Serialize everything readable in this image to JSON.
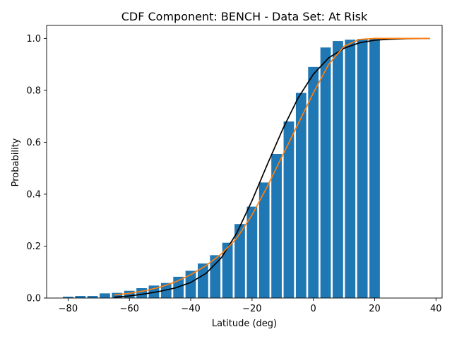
{
  "chart_data": {
    "type": "bar",
    "title": "CDF Component: BENCH - Data Set: At Risk",
    "xlabel": "Latitude (deg)",
    "ylabel": "Probability",
    "xlim": [
      -87,
      42
    ],
    "ylim": [
      0,
      1.05
    ],
    "xticks": [
      -80,
      -60,
      -40,
      -20,
      0,
      20,
      40
    ],
    "yticks": [
      0.0,
      0.2,
      0.4,
      0.6,
      0.8,
      1.0
    ],
    "xtick_labels": [
      "−80",
      "−60",
      "−40",
      "−20",
      "0",
      "20",
      "40"
    ],
    "ytick_labels": [
      "0.0",
      "0.2",
      "0.4",
      "0.6",
      "0.8",
      "1.0"
    ],
    "grid": false,
    "bar_width": 3.4,
    "colors": {
      "bars": "#1f77b4",
      "fit_black": "#000000",
      "fit_orange": "#ff7f0e",
      "axes": "#000000"
    },
    "bars": {
      "x": [
        -80,
        -76,
        -72,
        -68,
        -64,
        -60,
        -56,
        -52,
        -48,
        -44,
        -40,
        -36,
        -32,
        -28,
        -24,
        -20,
        -16,
        -12,
        -8,
        -4,
        0,
        4,
        8,
        12,
        16,
        20
      ],
      "values": [
        0.005,
        0.008,
        0.008,
        0.018,
        0.02,
        0.028,
        0.038,
        0.048,
        0.058,
        0.082,
        0.105,
        0.133,
        0.165,
        0.213,
        0.285,
        0.352,
        0.445,
        0.555,
        0.68,
        0.79,
        0.89,
        0.965,
        0.99,
        0.995,
        0.998,
        1.0
      ]
    },
    "series": [
      {
        "x": [
          -65,
          -60,
          -55,
          -50,
          -45,
          -40,
          -35,
          -30,
          -25,
          -20,
          -15,
          -10,
          -5,
          0,
          5,
          10,
          15,
          20,
          25,
          30,
          35,
          38
        ],
        "values": [
          0.003,
          0.008,
          0.016,
          0.026,
          0.039,
          0.06,
          0.095,
          0.155,
          0.25,
          0.375,
          0.515,
          0.65,
          0.77,
          0.862,
          0.925,
          0.962,
          0.983,
          0.993,
          0.997,
          0.999,
          1.0,
          1.0
        ]
      },
      {
        "x": [
          -65,
          -60,
          -55,
          -50,
          -45,
          -40,
          -35,
          -30,
          -25,
          -20,
          -15,
          -10,
          -5,
          0,
          5,
          10,
          15,
          20,
          25,
          30,
          35,
          38
        ],
        "values": [
          0.012,
          0.018,
          0.028,
          0.042,
          0.062,
          0.09,
          0.125,
          0.17,
          0.23,
          0.32,
          0.43,
          0.55,
          0.67,
          0.79,
          0.9,
          0.97,
          0.996,
          1.0,
          1.0,
          1.0,
          1.0,
          1.0
        ]
      }
    ]
  }
}
